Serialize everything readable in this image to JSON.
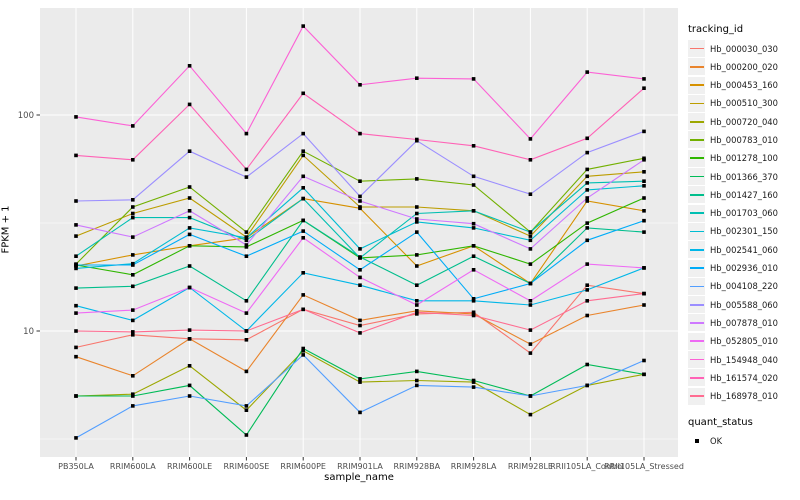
{
  "chart": {
    "xlabel": "sample_name",
    "ylabel": "FPKM + 1",
    "legend_title_tracking": "tracking_id",
    "legend_title_quant": "quant_status",
    "quant_ok_label": "OK"
  },
  "chart_data": {
    "type": "line",
    "title": "",
    "xlabel": "sample_name",
    "ylabel": "FPKM + 1",
    "y_scale": "log10",
    "y_ticks": [
      100,
      10
    ],
    "y_tick_labels": [
      "100",
      "10"
    ],
    "y_minor_ticks": [
      316.23,
      31.623,
      3.1623
    ],
    "ylim": [
      2.9,
      320
    ],
    "grid": "major-and-minor-white-on-gray-panel",
    "legend_position": "right",
    "panel_color": "#EBEBEB",
    "marker": "black-square",
    "categories": [
      "PB350LA",
      "RRIM600LA",
      "RRIM600LE",
      "RRIM600SE",
      "RRIM600PE",
      "RRIM901LA",
      "RRIM928BA",
      "RRIM928LA",
      "RRIM928LE",
      "RRII105LA_Control",
      "RRII105LA_Stressed"
    ],
    "series": [
      {
        "name": "Hb_000030_030",
        "color": "#F8766D",
        "values": [
          8.4,
          9.6,
          9.2,
          9.1,
          12.6,
          10.6,
          12.0,
          12.2,
          7.9,
          16.3,
          14.9
        ]
      },
      {
        "name": "Hb_000200_020",
        "color": "#E9842C",
        "values": [
          7.6,
          6.2,
          9.2,
          6.5,
          14.7,
          11.2,
          12.4,
          12.0,
          8.7,
          11.8,
          13.2
        ]
      },
      {
        "name": "Hb_000453_160",
        "color": "#D69100",
        "values": [
          20.0,
          22.5,
          24.8,
          27.0,
          41.0,
          37.0,
          20.0,
          24.8,
          16.6,
          40.0,
          36.0
        ]
      },
      {
        "name": "Hb_000510_300",
        "color": "#BC9D00",
        "values": [
          27.5,
          35.0,
          41.3,
          27.2,
          65.0,
          37.5,
          37.5,
          36.0,
          27.5,
          52.0,
          54.6
        ]
      },
      {
        "name": "Hb_000720_040",
        "color": "#9CA700",
        "values": [
          5.0,
          5.1,
          6.9,
          4.3,
          8.1,
          5.8,
          5.9,
          5.8,
          4.1,
          5.6,
          6.3
        ]
      },
      {
        "name": "Hb_000783_010",
        "color": "#72B000",
        "values": [
          20.4,
          37.5,
          46.4,
          28.7,
          68.0,
          49.4,
          50.6,
          47.4,
          28.7,
          56.0,
          63.0
        ]
      },
      {
        "name": "Hb_001278_100",
        "color": "#2FB600",
        "values": [
          20.2,
          18.2,
          24.8,
          24.5,
          32.5,
          21.8,
          22.5,
          24.8,
          20.4,
          31.6,
          41.3
        ]
      },
      {
        "name": "Hb_001366_370",
        "color": "#00BB57",
        "values": [
          5.0,
          5.0,
          5.6,
          3.3,
          8.3,
          6.0,
          6.5,
          5.9,
          5.0,
          7.0,
          6.3
        ]
      },
      {
        "name": "Hb_001427_160",
        "color": "#00BE8C",
        "values": [
          15.8,
          16.1,
          20.0,
          13.8,
          32.5,
          22.0,
          16.3,
          22.2,
          16.6,
          30.0,
          28.7
        ]
      },
      {
        "name": "Hb_001703_060",
        "color": "#00BFB2",
        "values": [
          22.2,
          33.5,
          33.5,
          26.3,
          41.0,
          21.8,
          35.0,
          36.0,
          28.7,
          48.5,
          49.4
        ]
      },
      {
        "name": "Hb_002301_150",
        "color": "#00BDD2",
        "values": [
          19.5,
          20.5,
          30.0,
          27.0,
          46.0,
          24.0,
          32.0,
          30.0,
          26.3,
          45.0,
          47.0
        ]
      },
      {
        "name": "Hb_002541_060",
        "color": "#00B7E8",
        "values": [
          13.1,
          11.2,
          15.9,
          10.0,
          18.6,
          16.3,
          13.8,
          13.8,
          13.2,
          15.5,
          19.6
        ]
      },
      {
        "name": "Hb_002936_010",
        "color": "#00ACF8",
        "values": [
          20.2,
          20.2,
          28.0,
          22.2,
          29.0,
          19.2,
          28.7,
          14.1,
          16.6,
          26.3,
          32.4
        ]
      },
      {
        "name": "Hb_004108_220",
        "color": "#529EFF",
        "values": [
          3.2,
          4.5,
          5.0,
          4.5,
          7.75,
          4.2,
          5.6,
          5.5,
          5.0,
          5.6,
          7.3
        ]
      },
      {
        "name": "Hb_005588_060",
        "color": "#9B8EFF",
        "values": [
          40.0,
          40.5,
          68.0,
          51.6,
          82.0,
          42.0,
          76.0,
          52.0,
          43.0,
          67.0,
          84.0
        ]
      },
      {
        "name": "Hb_007878_010",
        "color": "#CE78FF",
        "values": [
          31.0,
          27.2,
          36.0,
          25.0,
          52.0,
          40.0,
          33.0,
          31.4,
          24.0,
          41.3,
          62.0
        ]
      },
      {
        "name": "Hb_052805_010",
        "color": "#EE6AF4",
        "values": [
          12.1,
          12.5,
          15.9,
          12.1,
          27.0,
          17.7,
          13.2,
          19.2,
          13.8,
          20.4,
          19.6
        ]
      },
      {
        "name": "Hb_154948_040",
        "color": "#FC61D5",
        "values": [
          98.0,
          89.0,
          169.0,
          82.0,
          258.0,
          138.0,
          148.0,
          147.0,
          77.5,
          158.0,
          147.0
        ]
      },
      {
        "name": "Hb_161574_020",
        "color": "#FF62B6",
        "values": [
          65.0,
          62.0,
          112.0,
          56.0,
          126.0,
          82.0,
          77.0,
          72.0,
          62.0,
          78.0,
          133.0
        ]
      },
      {
        "name": "Hb_168978_010",
        "color": "#FF6C91",
        "values": [
          10.0,
          9.9,
          10.1,
          10.0,
          12.6,
          9.8,
          12.2,
          11.8,
          10.1,
          13.8,
          14.9
        ]
      }
    ],
    "quant_status": {
      "label": "OK",
      "marker": "black-square"
    }
  }
}
